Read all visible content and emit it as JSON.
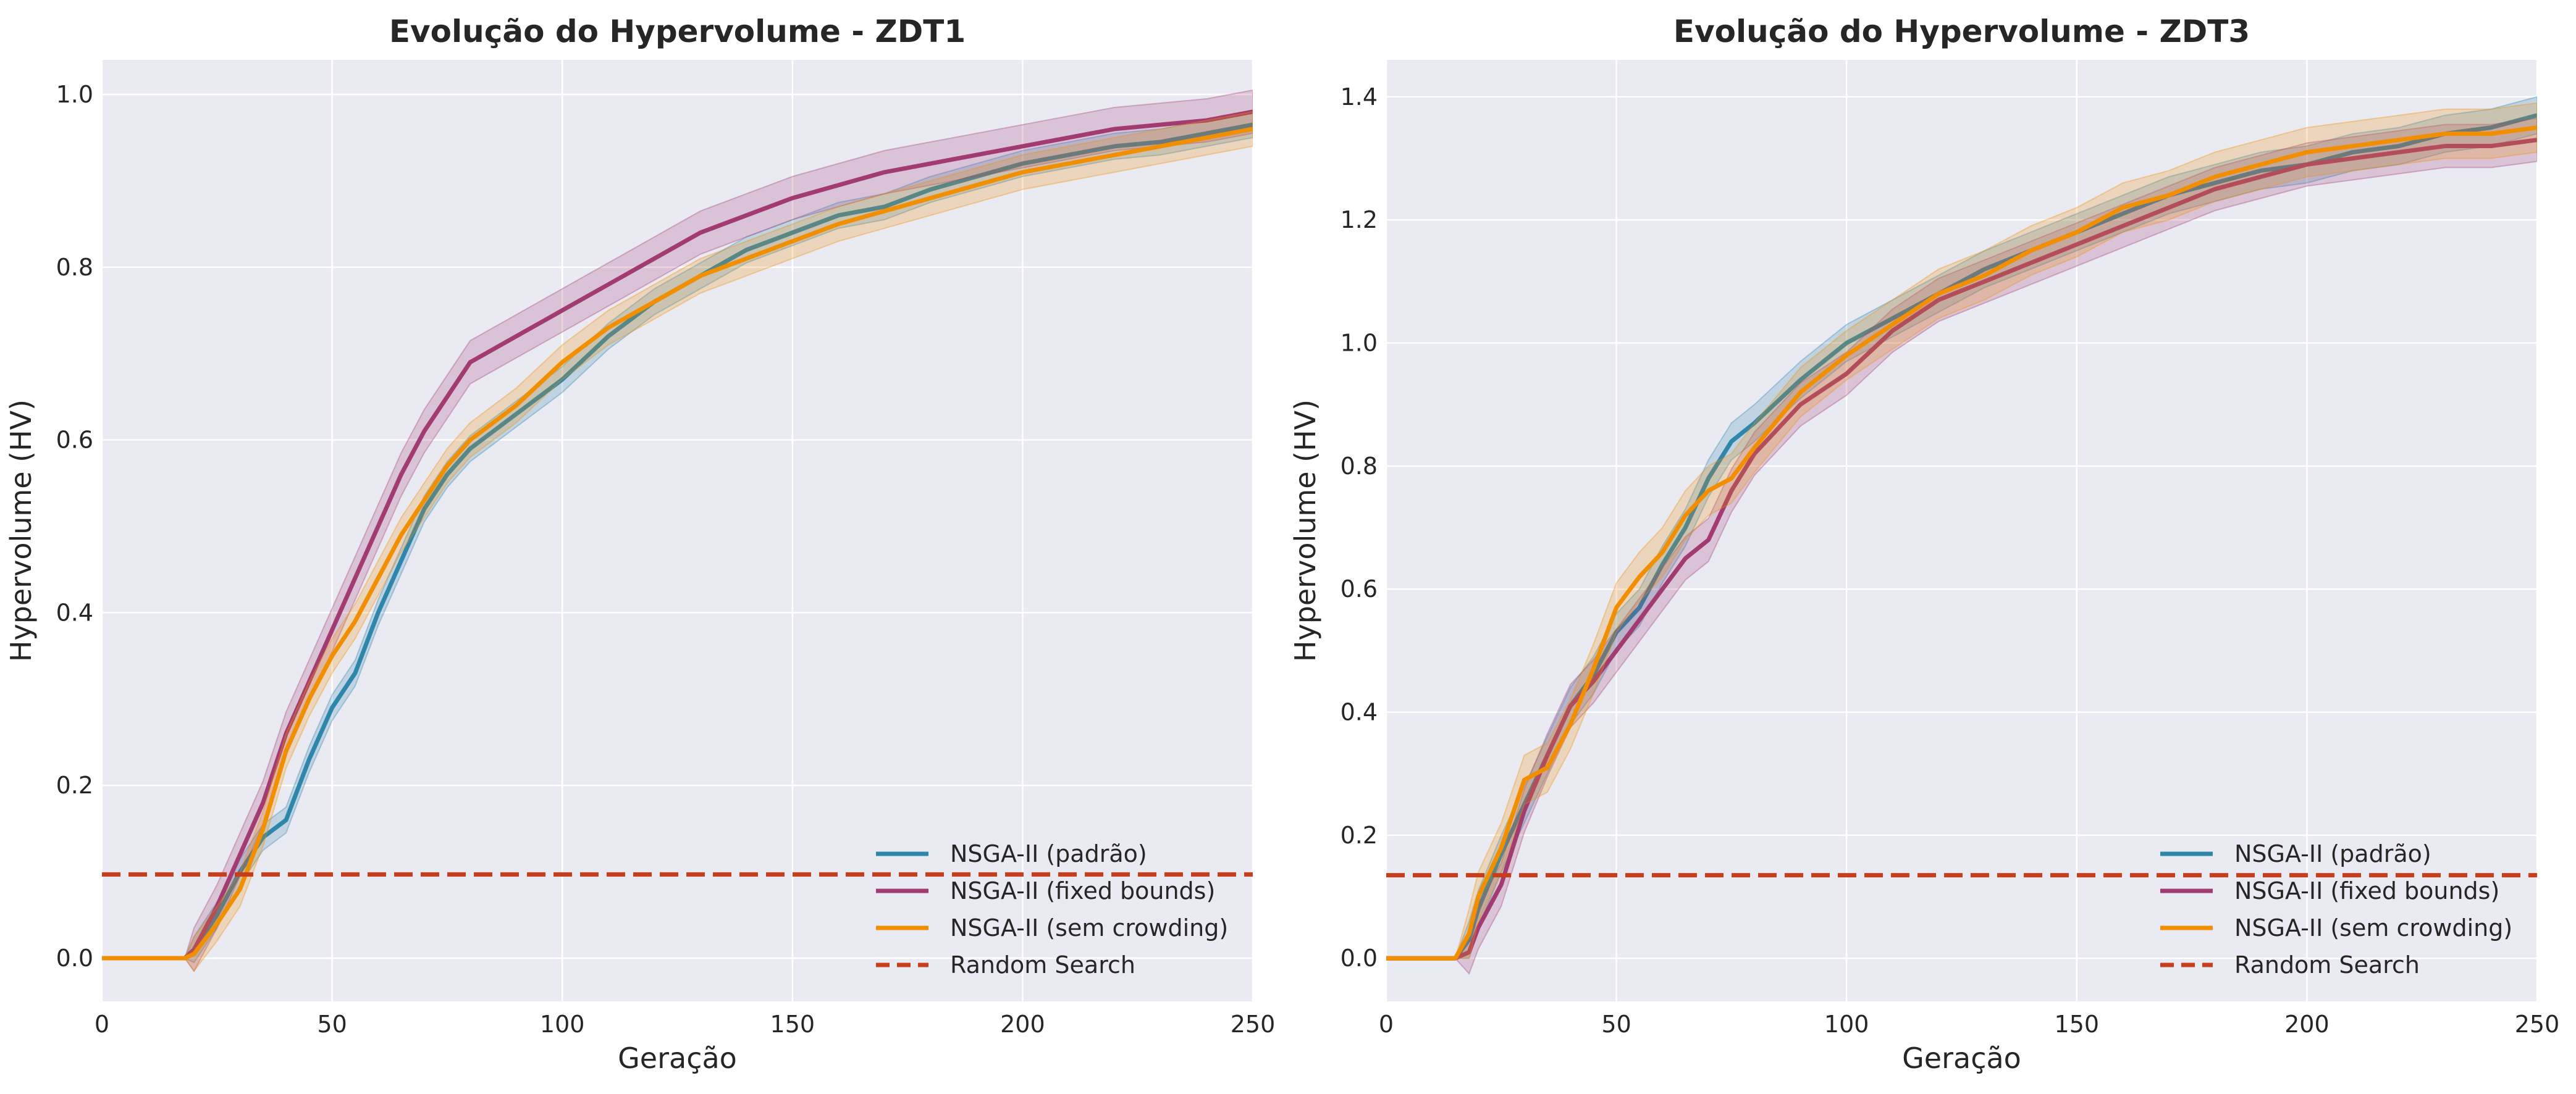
{
  "colors": {
    "plot_background": "#EAEAF2",
    "grid": "#FFFFFF",
    "text": "#262626",
    "padrao": "#2E86AB",
    "fixed_bounds": "#A23B72",
    "sem_crowding": "#F18F01",
    "random_search": "#C73E1D"
  },
  "chart_data": [
    {
      "type": "line",
      "title": "Evolução do Hypervolume - ZDT1",
      "xlabel": "Geração",
      "ylabel": "Hypervolume (HV)",
      "xlim": [
        0,
        250
      ],
      "ylim": [
        -0.05,
        1.04
      ],
      "xticks": [
        "0",
        "50",
        "100",
        "150",
        "200",
        "250"
      ],
      "yticks": [
        "0.0",
        "0.2",
        "0.4",
        "0.6",
        "0.8",
        "1.0"
      ],
      "grid": true,
      "legend_position": "lower-right",
      "x": [
        0,
        18,
        20,
        25,
        30,
        35,
        40,
        45,
        50,
        55,
        60,
        65,
        70,
        75,
        80,
        90,
        100,
        110,
        120,
        130,
        140,
        150,
        160,
        170,
        180,
        190,
        200,
        210,
        220,
        230,
        240,
        250
      ],
      "series": [
        {
          "name": "NSGA-II (padrão)",
          "color_key": "padrao",
          "band": 0.015,
          "values": [
            0,
            0,
            0.01,
            0.05,
            0.1,
            0.14,
            0.16,
            0.23,
            0.29,
            0.33,
            0.4,
            0.46,
            0.52,
            0.56,
            0.59,
            0.63,
            0.67,
            0.72,
            0.76,
            0.79,
            0.82,
            0.84,
            0.86,
            0.87,
            0.89,
            0.905,
            0.92,
            0.93,
            0.94,
            0.945,
            0.955,
            0.965
          ]
        },
        {
          "name": "NSGA-II (fixed bounds)",
          "color_key": "fixed_bounds",
          "band": 0.025,
          "values": [
            0,
            0,
            0.01,
            0.06,
            0.12,
            0.18,
            0.26,
            0.32,
            0.38,
            0.44,
            0.5,
            0.56,
            0.61,
            0.65,
            0.69,
            0.72,
            0.75,
            0.78,
            0.81,
            0.84,
            0.86,
            0.88,
            0.895,
            0.91,
            0.92,
            0.93,
            0.94,
            0.95,
            0.96,
            0.965,
            0.97,
            0.98
          ]
        },
        {
          "name": "NSGA-II (sem crowding)",
          "color_key": "sem_crowding",
          "band": 0.02,
          "values": [
            0,
            0,
            0.005,
            0.04,
            0.08,
            0.15,
            0.24,
            0.3,
            0.35,
            0.39,
            0.44,
            0.49,
            0.53,
            0.57,
            0.6,
            0.64,
            0.69,
            0.73,
            0.76,
            0.79,
            0.81,
            0.83,
            0.85,
            0.865,
            0.88,
            0.895,
            0.91,
            0.92,
            0.93,
            0.94,
            0.95,
            0.96
          ]
        },
        {
          "name": "Random Search",
          "color_key": "random_search",
          "dashed": true,
          "constant": 0.097
        }
      ]
    },
    {
      "type": "line",
      "title": "Evolução do Hypervolume - ZDT3",
      "xlabel": "Geração",
      "ylabel": "Hypervolume (HV)",
      "xlim": [
        0,
        250
      ],
      "ylim": [
        -0.07,
        1.46
      ],
      "xticks": [
        "0",
        "50",
        "100",
        "150",
        "200",
        "250"
      ],
      "yticks": [
        "0.0",
        "0.2",
        "0.4",
        "0.6",
        "0.8",
        "1.0",
        "1.2",
        "1.4"
      ],
      "grid": true,
      "legend_position": "lower-right",
      "x": [
        0,
        15,
        18,
        20,
        25,
        30,
        35,
        40,
        45,
        50,
        55,
        60,
        65,
        70,
        75,
        80,
        90,
        100,
        110,
        120,
        130,
        140,
        150,
        160,
        170,
        180,
        190,
        200,
        210,
        220,
        230,
        240,
        250
      ],
      "series": [
        {
          "name": "NSGA-II (padrão)",
          "color_key": "padrao",
          "band": 0.03,
          "values": [
            0,
            0,
            0.03,
            0.08,
            0.17,
            0.25,
            0.33,
            0.41,
            0.46,
            0.53,
            0.57,
            0.64,
            0.7,
            0.78,
            0.84,
            0.87,
            0.94,
            1.0,
            1.04,
            1.08,
            1.12,
            1.15,
            1.18,
            1.21,
            1.24,
            1.26,
            1.28,
            1.29,
            1.31,
            1.32,
            1.34,
            1.35,
            1.37
          ]
        },
        {
          "name": "NSGA-II (fixed bounds)",
          "color_key": "fixed_bounds",
          "band": 0.035,
          "values": [
            0,
            0,
            0.01,
            0.05,
            0.12,
            0.24,
            0.33,
            0.41,
            0.45,
            0.5,
            0.55,
            0.6,
            0.65,
            0.68,
            0.76,
            0.82,
            0.9,
            0.95,
            1.02,
            1.07,
            1.1,
            1.13,
            1.16,
            1.19,
            1.22,
            1.25,
            1.27,
            1.29,
            1.3,
            1.31,
            1.32,
            1.32,
            1.33
          ]
        },
        {
          "name": "NSGA-II (sem crowding)",
          "color_key": "sem_crowding",
          "band": 0.04,
          "values": [
            0,
            0,
            0.04,
            0.1,
            0.18,
            0.29,
            0.31,
            0.38,
            0.47,
            0.57,
            0.62,
            0.66,
            0.72,
            0.76,
            0.78,
            0.83,
            0.92,
            0.98,
            1.03,
            1.08,
            1.11,
            1.15,
            1.18,
            1.22,
            1.24,
            1.27,
            1.29,
            1.31,
            1.32,
            1.33,
            1.34,
            1.34,
            1.35
          ]
        },
        {
          "name": "Random Search",
          "color_key": "random_search",
          "dashed": true,
          "constant": 0.135
        }
      ]
    }
  ]
}
